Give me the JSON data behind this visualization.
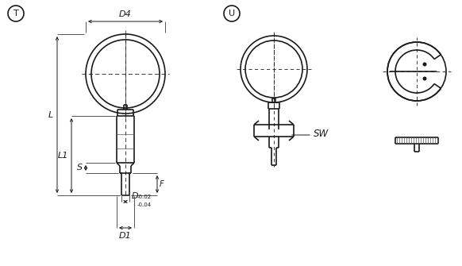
{
  "bg_color": "#ffffff",
  "line_color": "#1a1a1a",
  "figsize": [
    5.82,
    3.35
  ],
  "dpi": 100,
  "label_T": "T",
  "label_U": "U",
  "dim_D4": "D4",
  "dim_L": "L",
  "dim_L1": "L1",
  "dim_S": "S",
  "dim_F": "F",
  "dim_D": "D",
  "dim_D_sup": "-0.02",
  "dim_D_sub": "-0.04",
  "dim_D1": "D1",
  "dim_SW": "SW"
}
